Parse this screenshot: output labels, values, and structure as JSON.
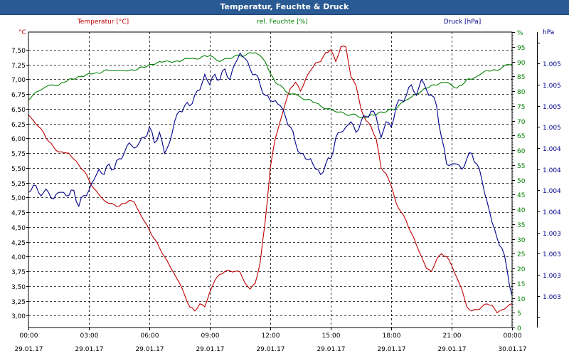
{
  "window": {
    "title": "Temperatur, Feuchte & Druck"
  },
  "chart_data": {
    "type": "line",
    "title": "Temperatur, Feuchte & Druck",
    "grid": true,
    "x": [
      "00:00",
      "00:15",
      "00:30",
      "00:45",
      "01:00",
      "01:15",
      "01:30",
      "01:45",
      "02:00",
      "02:15",
      "02:30",
      "02:45",
      "03:00",
      "03:15",
      "03:30",
      "03:45",
      "04:00",
      "04:15",
      "04:30",
      "04:45",
      "05:00",
      "05:15",
      "05:30",
      "05:45",
      "06:00",
      "06:15",
      "06:30",
      "06:45",
      "07:00",
      "07:15",
      "07:30",
      "07:45",
      "08:00",
      "08:15",
      "08:30",
      "08:45",
      "09:00",
      "09:15",
      "09:30",
      "09:45",
      "10:00",
      "10:15",
      "10:30",
      "10:45",
      "11:00",
      "11:15",
      "11:30",
      "11:45",
      "12:00",
      "12:15",
      "12:30",
      "12:45",
      "13:00",
      "13:15",
      "13:30",
      "13:45",
      "14:00",
      "14:15",
      "14:30",
      "14:45",
      "15:00",
      "15:15",
      "15:30",
      "15:45",
      "16:00",
      "16:15",
      "16:30",
      "16:45",
      "17:00",
      "17:15",
      "17:30",
      "17:45",
      "18:00",
      "18:15",
      "18:30",
      "18:45",
      "19:00",
      "19:15",
      "19:30",
      "19:45",
      "20:00",
      "20:15",
      "20:30",
      "20:45",
      "21:00",
      "21:15",
      "21:30",
      "21:45",
      "22:00",
      "22:15",
      "22:30",
      "22:45",
      "23:00",
      "23:15",
      "23:30",
      "23:45",
      "24:00"
    ],
    "x_ticks": [
      {
        "time": "00:00",
        "date": "29.01.17"
      },
      {
        "time": "03:00",
        "date": "29.01.17"
      },
      {
        "time": "06:00",
        "date": "29.01.17"
      },
      {
        "time": "09:00",
        "date": "29.01.17"
      },
      {
        "time": "12:00",
        "date": "29.01.17"
      },
      {
        "time": "15:00",
        "date": "29.01.17"
      },
      {
        "time": "18:00",
        "date": "29.01.17"
      },
      {
        "time": "21:00",
        "date": "29.01.17"
      },
      {
        "time": "00:00",
        "date": "30.01.17"
      }
    ],
    "axes": {
      "temperature": {
        "unit": "°C",
        "min": 2.8,
        "max": 7.8,
        "ticks": [
          "3,00",
          "3,25",
          "3,50",
          "3,75",
          "4,00",
          "4,25",
          "4,50",
          "4,75",
          "5,00",
          "5,25",
          "5,50",
          "5,75",
          "6,00",
          "6,25",
          "6,50",
          "6,75",
          "7,00",
          "7,25",
          "7,50"
        ],
        "color": "#c00000",
        "position": "left"
      },
      "humidity": {
        "unit": "%",
        "min": 0,
        "max": 100,
        "ticks": [
          "0",
          "5",
          "10",
          "15",
          "20",
          "25",
          "30",
          "35",
          "40",
          "45",
          "50",
          "55",
          "60",
          "65",
          "70",
          "75",
          "80",
          "85",
          "90",
          "95",
          "%"
        ],
        "color": "#008000",
        "position": "right"
      },
      "pressure": {
        "unit": "hPa",
        "min": 1002.6,
        "max": 1005.4,
        "ticks": [
          "1.003",
          "1.003",
          "1.003",
          "1.003",
          "1.004",
          "1.004",
          "1.004",
          "1.004",
          "1.005",
          "1.005",
          "1.005",
          "1.005"
        ],
        "color": "#00008b",
        "position": "right"
      }
    },
    "series": [
      {
        "name": "Temperatur [°C]",
        "axis": "temperature",
        "color": "#c00000",
        "values": [
          6.4,
          6.3,
          6.2,
          6.1,
          5.95,
          5.85,
          5.77,
          5.76,
          5.75,
          5.65,
          5.55,
          5.45,
          5.3,
          5.15,
          5.05,
          4.95,
          4.9,
          4.88,
          4.85,
          4.9,
          4.95,
          4.92,
          4.75,
          4.6,
          4.45,
          4.3,
          4.15,
          4.0,
          3.85,
          3.7,
          3.55,
          3.35,
          3.15,
          3.08,
          3.2,
          3.15,
          3.4,
          3.6,
          3.7,
          3.75,
          3.76,
          3.75,
          3.74,
          3.55,
          3.45,
          3.55,
          3.9,
          4.6,
          5.5,
          6.0,
          6.3,
          6.6,
          6.85,
          6.95,
          6.8,
          7.0,
          7.15,
          7.28,
          7.3,
          7.45,
          7.5,
          7.3,
          7.55,
          7.55,
          7.05,
          6.9,
          6.5,
          6.3,
          6.2,
          6.0,
          5.5,
          5.4,
          5.2,
          4.9,
          4.75,
          4.6,
          4.4,
          4.2,
          4.0,
          3.8,
          3.75,
          3.95,
          4.05,
          4.0,
          3.85,
          3.65,
          3.45,
          3.15,
          3.08,
          3.1,
          3.15,
          3.2,
          3.18,
          3.05,
          3.1,
          3.15,
          3.2
        ]
      },
      {
        "name": "rel. Feuchte [%]",
        "axis": "humidity",
        "color": "#008000",
        "values": [
          77,
          79,
          80,
          81,
          82,
          82,
          82,
          83,
          84,
          84,
          85,
          85,
          86,
          86,
          86,
          87,
          87,
          87,
          87,
          87,
          87,
          87,
          88,
          88,
          89,
          89,
          90,
          90,
          90,
          90,
          90,
          91,
          91,
          91,
          91,
          92,
          92,
          91,
          90,
          91,
          91,
          92,
          92,
          92,
          93,
          93,
          92,
          90,
          86,
          83,
          82,
          80,
          79,
          79,
          78,
          77,
          77,
          76,
          75,
          74,
          74,
          73,
          73,
          72,
          72,
          72,
          71,
          71,
          72,
          72,
          73,
          73,
          74,
          74,
          76,
          77,
          78,
          79,
          80,
          81,
          82,
          82,
          83,
          83,
          82,
          81,
          82,
          84,
          84,
          85,
          86,
          87,
          87,
          87,
          88,
          89,
          89
        ]
      },
      {
        "name": "Druck [hPa]",
        "axis": "pressure",
        "color": "#00008b",
        "values": [
          1003.88,
          1003.95,
          1003.88,
          1003.88,
          1003.88,
          1003.82,
          1003.88,
          1003.88,
          1003.85,
          1003.9,
          1003.75,
          1003.85,
          1003.9,
          1004.0,
          1004.1,
          1004.05,
          1004.15,
          1004.1,
          1004.2,
          1004.25,
          1004.35,
          1004.3,
          1004.35,
          1004.4,
          1004.5,
          1004.35,
          1004.45,
          1004.25,
          1004.35,
          1004.55,
          1004.65,
          1004.7,
          1004.7,
          1004.8,
          1004.85,
          1005.0,
          1004.9,
          1005.0,
          1004.95,
          1005.05,
          1004.95,
          1005.1,
          1005.2,
          1005.15,
          1005.05,
          1005.0,
          1004.9,
          1004.8,
          1004.75,
          1004.75,
          1004.7,
          1004.6,
          1004.5,
          1004.35,
          1004.25,
          1004.2,
          1004.2,
          1004.1,
          1004.05,
          1004.15,
          1004.2,
          1004.4,
          1004.45,
          1004.5,
          1004.55,
          1004.45,
          1004.55,
          1004.6,
          1004.65,
          1004.6,
          1004.4,
          1004.55,
          1004.5,
          1004.7,
          1004.75,
          1004.8,
          1004.9,
          1004.8,
          1004.95,
          1004.85,
          1004.8,
          1004.7,
          1004.4,
          1004.15,
          1004.15,
          1004.15,
          1004.1,
          1004.2,
          1004.25,
          1004.15,
          1004.0,
          1003.8,
          1003.6,
          1003.45,
          1003.35,
          1003.15,
          1002.9
        ]
      }
    ]
  }
}
